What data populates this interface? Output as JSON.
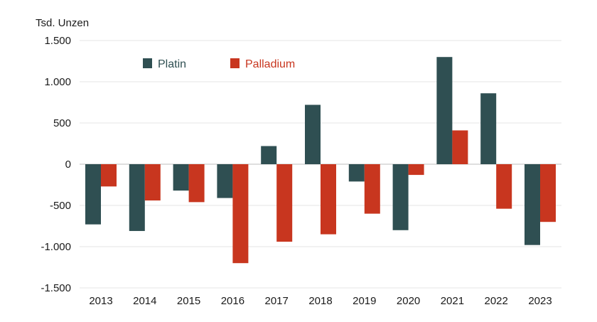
{
  "chart_data": {
    "type": "bar",
    "title": "",
    "ylabel": "Tsd. Unzen",
    "xlabel": "",
    "ylim": [
      -1500,
      1500
    ],
    "yticks": [
      1500,
      1000,
      500,
      0,
      -500,
      -1000,
      -1500
    ],
    "ytick_labels": [
      "1.500",
      "1.000",
      "500",
      "0",
      "-500",
      "-1.000",
      "-1.500"
    ],
    "grid": "horizontal",
    "legend_position": "top-left",
    "categories": [
      "2013",
      "2014",
      "2015",
      "2016",
      "2017",
      "2018",
      "2019",
      "2020",
      "2021",
      "2022",
      "2023"
    ],
    "series": [
      {
        "name": "Platin",
        "color": "#2f4f52",
        "values": [
          -730,
          -810,
          -320,
          -410,
          220,
          720,
          -210,
          -800,
          1300,
          860,
          -980
        ]
      },
      {
        "name": "Palladium",
        "color": "#c8361f",
        "values": [
          -270,
          -440,
          -460,
          -1200,
          -940,
          -850,
          -600,
          -130,
          410,
          -540,
          -700
        ]
      }
    ]
  }
}
